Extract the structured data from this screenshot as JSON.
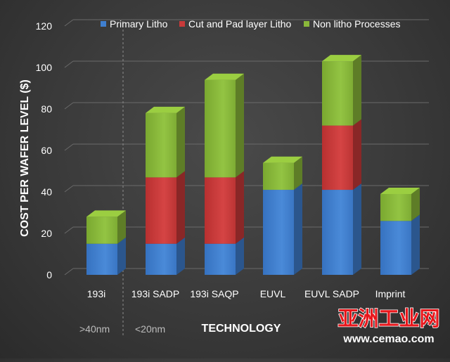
{
  "chart_data": {
    "type": "bar",
    "stacked": true,
    "style": "3d",
    "categories": [
      "193i",
      "193i SADP",
      "193i SAQP",
      "EUVL",
      "EUVL SADP",
      "Imprint"
    ],
    "series": [
      {
        "name": "Primary Litho",
        "color": "#3f7fd0",
        "values": [
          15,
          15,
          15,
          41,
          41,
          26
        ]
      },
      {
        "name": "Cut and Pad layer Litho",
        "color": "#c93a3a",
        "values": [
          0,
          32,
          32,
          0,
          31,
          0
        ]
      },
      {
        "name": "Non litho Processes",
        "color": "#8ab83a",
        "values": [
          13,
          31,
          47,
          13,
          31,
          13
        ]
      }
    ],
    "ylabel": "COST PER WAFER LEVEL ($)",
    "xlabel": "TECHNOLOGY",
    "ylim": [
      0,
      120
    ],
    "yticks": [
      0,
      20,
      40,
      60,
      80,
      100,
      120
    ],
    "legend_position": "top",
    "node_annotations": [
      ">40nm",
      "<20nm"
    ],
    "watermark": {
      "brand": "亚洲工业网",
      "url": "www.cemao.com"
    }
  }
}
